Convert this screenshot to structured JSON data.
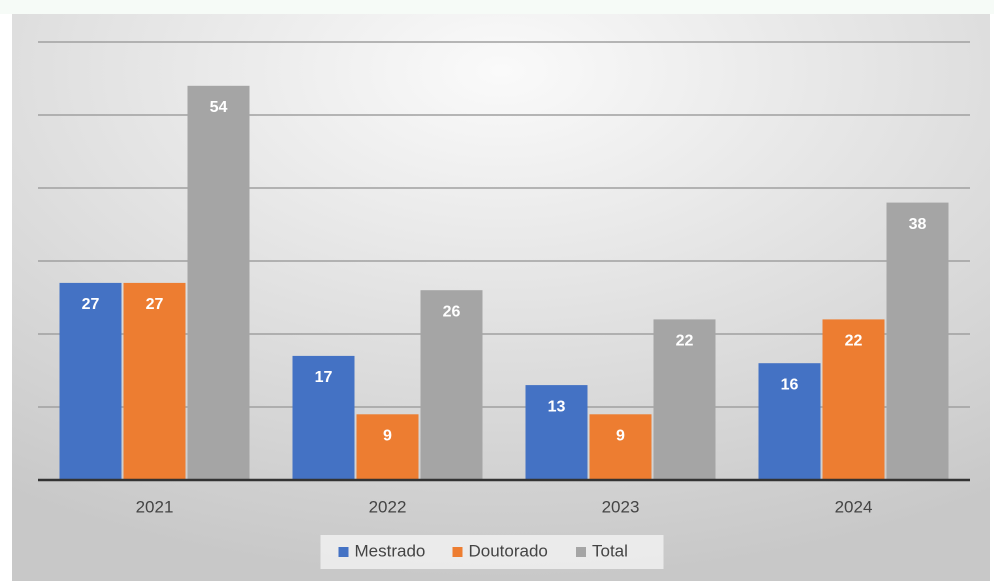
{
  "chart_data": {
    "type": "bar",
    "categories": [
      "2021",
      "2022",
      "2023",
      "2024"
    ],
    "series": [
      {
        "name": "Mestrado",
        "color": "#4472c4",
        "values": [
          27,
          17,
          13,
          16
        ]
      },
      {
        "name": "Doutorado",
        "color": "#ed7d31",
        "values": [
          27,
          9,
          9,
          22
        ]
      },
      {
        "name": "Total",
        "color": "#a5a5a5",
        "values": [
          54,
          26,
          22,
          38
        ]
      }
    ],
    "ylim": [
      0,
      60
    ],
    "yticks": [
      0,
      10,
      20,
      30,
      40,
      50,
      60
    ],
    "grid": true,
    "legend": "bottom"
  }
}
